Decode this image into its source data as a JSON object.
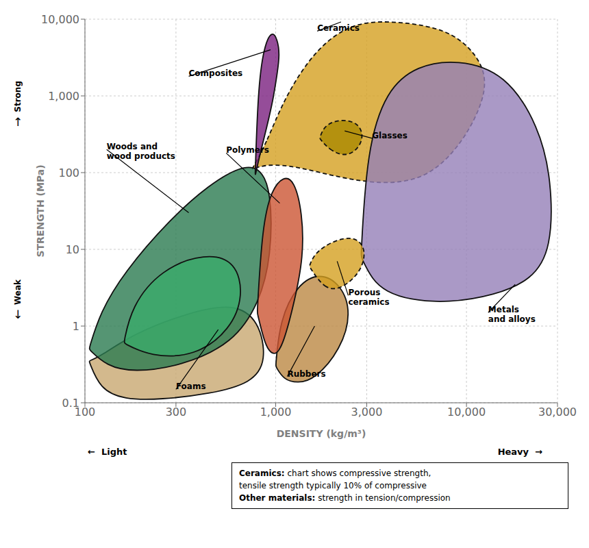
{
  "chart_data": {
    "type": "polygon",
    "x_label": "DENSITY (kg/m³)",
    "y_label": "STRENGTH (MPa)",
    "log": true,
    "grid": true,
    "xlim": [
      100,
      30000
    ],
    "ylim": [
      0.1,
      10000
    ],
    "xticks": [
      100,
      300,
      {
        "value": 1000,
        "label": "1,000"
      },
      {
        "value": 3000,
        "label": "3,000"
      },
      {
        "value": 10000,
        "label": "10,000"
      },
      {
        "value": 30000,
        "label": "30,000"
      }
    ],
    "yticks": [
      0.1,
      1,
      10,
      100,
      {
        "value": 1000,
        "label": "1,000"
      },
      {
        "value": 10000,
        "label": "10,000"
      }
    ],
    "series": [
      {
        "color": "#c8a870",
        "line_style": "solid",
        "x": [
          105,
          120,
          160,
          250,
          450,
          750,
          900,
          820,
          600,
          350,
          180,
          120,
          105
        ],
        "y": [
          0.35,
          0.15,
          0.11,
          0.11,
          0.13,
          0.18,
          0.35,
          1.2,
          2.0,
          1.5,
          0.8,
          0.4,
          0.35
        ]
      },
      {
        "color": "#d4a020",
        "line_style": "dashed",
        "x": [
          750,
          900,
          1100,
          1600,
          2500,
          4000,
          7000,
          10000,
          13000,
          12000,
          9000,
          6000,
          3500,
          2000,
          1300,
          900,
          750
        ],
        "y": [
          110,
          250,
          900,
          4000,
          9000,
          9500,
          8000,
          5000,
          2000,
          700,
          200,
          80,
          70,
          90,
          120,
          130,
          110
        ]
      },
      {
        "color": "#2a7a50",
        "line_style": "solid",
        "x": [
          105,
          130,
          180,
          320,
          600,
          820,
          950,
          950,
          820,
          650,
          450,
          280,
          160,
          120,
          105
        ],
        "y": [
          0.5,
          0.3,
          0.25,
          0.3,
          0.6,
          2.0,
          8,
          60,
          120,
          120,
          70,
          25,
          5,
          1.5,
          0.5
        ]
      },
      {
        "color": "#9580b8",
        "line_style": "solid",
        "x": [
          2800,
          3200,
          3800,
          5000,
          8000,
          14000,
          22000,
          28000,
          28000,
          24000,
          16000,
          9000,
          5500,
          3800,
          3000,
          2800
        ],
        "y": [
          8,
          4,
          2.8,
          2.2,
          2.0,
          2.5,
          4,
          10,
          80,
          400,
          2000,
          3000,
          2500,
          1200,
          200,
          8
        ]
      },
      {
        "color": "#3aaa6a",
        "line_style": "solid",
        "x": [
          160,
          220,
          380,
          580,
          680,
          620,
          430,
          250,
          175,
          160
        ],
        "y": [
          0.6,
          0.4,
          0.4,
          0.9,
          2.5,
          7.0,
          9.0,
          5.5,
          1.8,
          0.6
        ]
      },
      {
        "color": "#bb8844",
        "line_style": "solid",
        "x": [
          1000,
          1100,
          1300,
          1600,
          2200,
          2500,
          2200,
          1700,
          1300,
          1050,
          1000
        ],
        "y": [
          0.3,
          0.2,
          0.18,
          0.2,
          0.5,
          1.5,
          3.5,
          5.0,
          3.5,
          1.2,
          0.3
        ]
      },
      {
        "color": "#d4a020",
        "line_style": "dashed",
        "x": [
          1500,
          1800,
          2200,
          2800,
          3000,
          2600,
          2000,
          1600,
          1500
        ],
        "y": [
          6,
          3,
          3,
          5,
          10,
          15,
          13,
          9,
          6
        ]
      },
      {
        "color": "#7b2080",
        "line_style": "solid",
        "x": [
          780,
          830,
          900,
          970,
          1020,
          1050,
          1020,
          960,
          880,
          810,
          780
        ],
        "y": [
          90,
          180,
          400,
          900,
          2000,
          3500,
          5500,
          7000,
          5000,
          1500,
          90
        ]
      },
      {
        "color": "#aa8800",
        "line_style": "dashed",
        "x": [
          1700,
          1900,
          2300,
          2700,
          2900,
          2700,
          2200,
          1800,
          1700
        ],
        "y": [
          280,
          200,
          160,
          200,
          300,
          450,
          500,
          420,
          280
        ]
      },
      {
        "color": "#cc5533",
        "line_style": "solid",
        "x": [
          800,
          850,
          900,
          1000,
          1100,
          1250,
          1400,
          1380,
          1250,
          1100,
          950,
          850,
          800
        ],
        "y": [
          1.5,
          0.8,
          0.5,
          0.4,
          0.6,
          2,
          8,
          30,
          80,
          90,
          60,
          20,
          1.5
        ]
      }
    ],
    "annotations": [
      {
        "text": "Ceramics",
        "x": 2200,
        "y": 9200,
        "text_x": 1650,
        "text_y": 7000
      },
      {
        "text": "Composites",
        "x": 940,
        "y": 4000,
        "text_x": 350,
        "text_y": 1800
      },
      {
        "text": "Woods and\nwood products",
        "x": 350,
        "y": 30,
        "text_x": 130,
        "text_y": 200
      },
      {
        "text": "Polymers",
        "x": 1050,
        "y": 40,
        "text_x": 550,
        "text_y": 180
      },
      {
        "text": "Glasses",
        "x": 2300,
        "y": 350,
        "text_x": 3200,
        "text_y": 280
      },
      {
        "text": "Rubbers",
        "x": 1600,
        "y": 1.0,
        "text_x": 1150,
        "text_y": 0.22
      },
      {
        "text": "Porous\nceramics",
        "x": 2100,
        "y": 7,
        "text_x": 2400,
        "text_y": 2.5
      },
      {
        "text": "Foams",
        "x": 500,
        "y": 0.9,
        "text_x": 300,
        "text_y": 0.15
      },
      {
        "text": "Metals\nand alloys",
        "x": 18000,
        "y": 3.5,
        "text_x": 13000,
        "text_y": 1.5
      }
    ],
    "left_texts": [
      [
        "Strong",
        "↑"
      ],
      [
        "Weak",
        "↓"
      ]
    ],
    "bottom_texts": [
      "←  Light",
      "Heavy  →"
    ],
    "note": [
      [
        "Ceramics:",
        "chart shows compressive strength,"
      ],
      [
        "tensile strength typically 10% of compressive"
      ],
      [
        "Other materials:",
        "strength in tension/compression"
      ]
    ]
  }
}
